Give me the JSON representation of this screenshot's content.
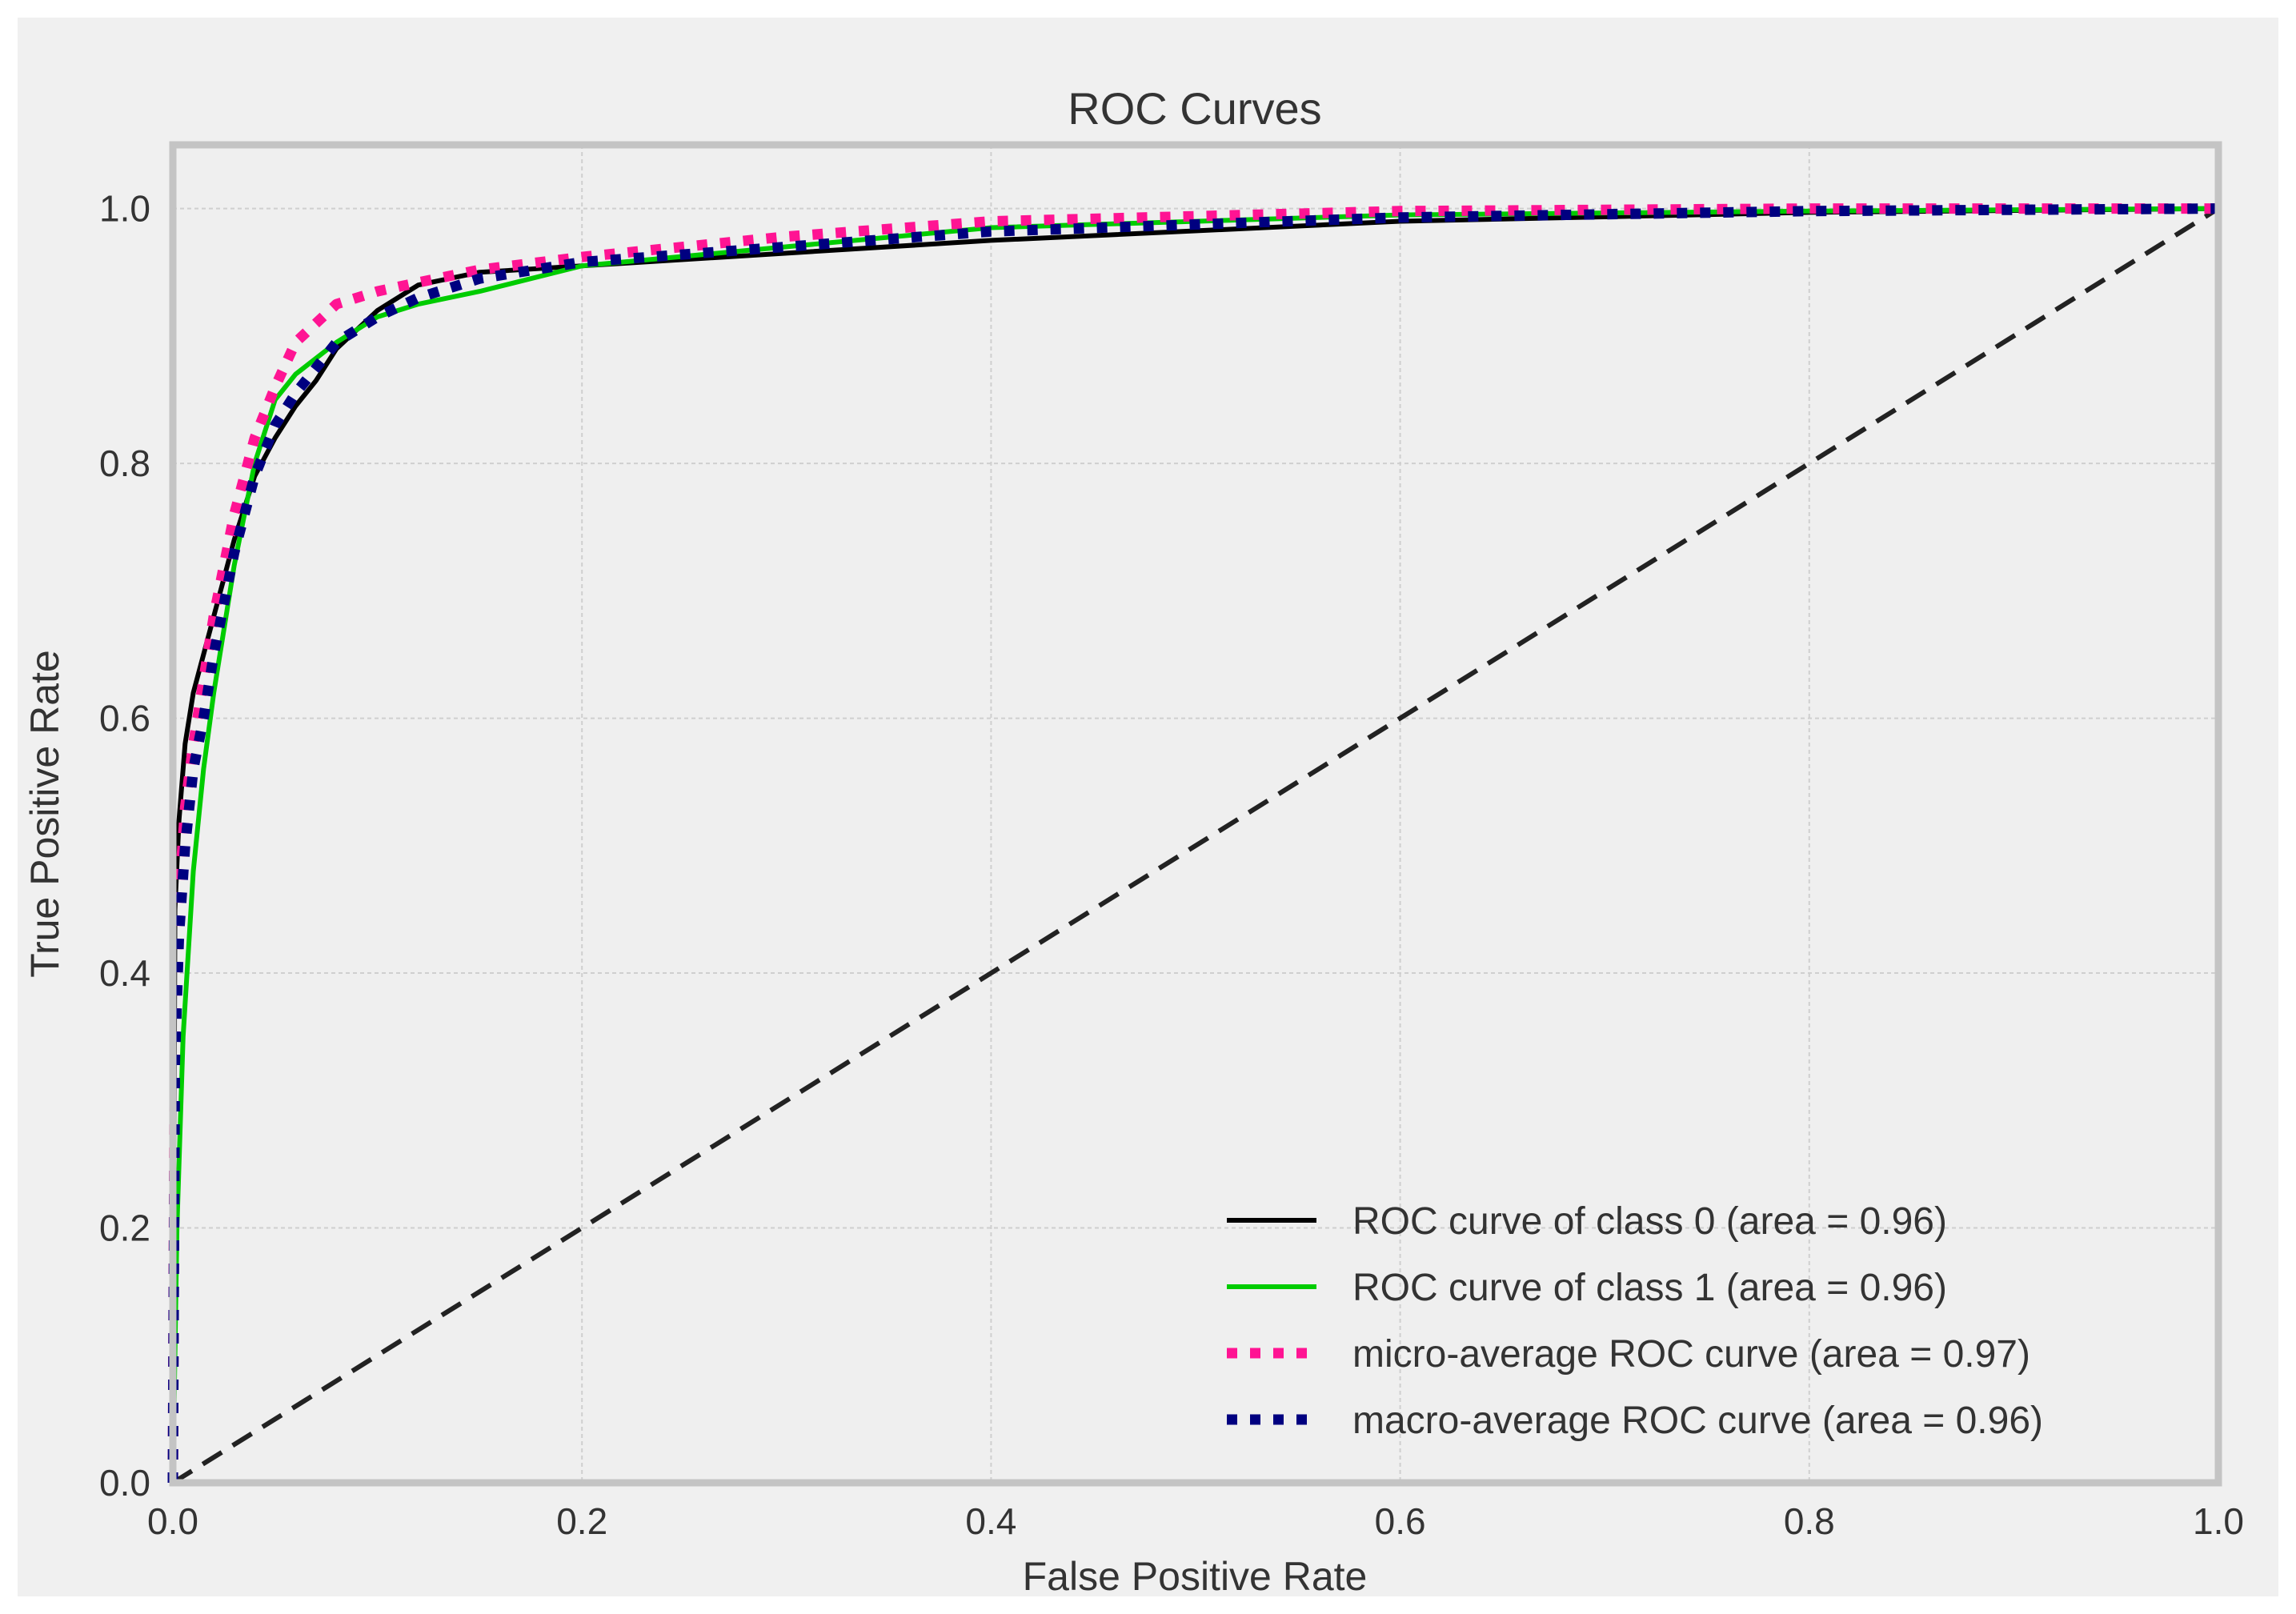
{
  "chart_data": {
    "type": "line",
    "title": "ROC Curves",
    "xlabel": "False Positive Rate",
    "ylabel": "True Positive Rate",
    "xlim": [
      0.0,
      1.0
    ],
    "ylim": [
      0.0,
      1.05
    ],
    "xticks": [
      0.0,
      0.2,
      0.4,
      0.6,
      0.8,
      1.0
    ],
    "yticks": [
      0.0,
      0.2,
      0.4,
      0.6,
      0.8,
      1.0
    ],
    "xtick_labels": [
      "0.0",
      "0.2",
      "0.4",
      "0.6",
      "0.8",
      "1.0"
    ],
    "ytick_labels": [
      "0.0",
      "0.2",
      "0.4",
      "0.6",
      "0.8",
      "1.0"
    ],
    "grid": true,
    "legend_position": "lower-right",
    "series": [
      {
        "name": "ROC curve of class 0 (area = 0.96)",
        "color": "#000000",
        "style": "solid",
        "x": [
          0.0,
          0.001,
          0.003,
          0.006,
          0.01,
          0.015,
          0.02,
          0.03,
          0.04,
          0.05,
          0.06,
          0.07,
          0.08,
          0.1,
          0.12,
          0.15,
          0.2,
          0.3,
          0.4,
          0.6,
          0.8,
          1.0
        ],
        "y": [
          0.0,
          0.45,
          0.52,
          0.58,
          0.62,
          0.65,
          0.68,
          0.74,
          0.79,
          0.82,
          0.845,
          0.865,
          0.89,
          0.92,
          0.94,
          0.95,
          0.955,
          0.965,
          0.975,
          0.99,
          0.997,
          1.0
        ]
      },
      {
        "name": "ROC curve of class 1 (area = 0.96)",
        "color": "#00cc00",
        "style": "solid",
        "x": [
          0.0,
          0.002,
          0.005,
          0.01,
          0.015,
          0.02,
          0.03,
          0.04,
          0.05,
          0.06,
          0.08,
          0.1,
          0.12,
          0.15,
          0.2,
          0.3,
          0.4,
          0.6,
          0.8,
          1.0
        ],
        "y": [
          0.0,
          0.2,
          0.35,
          0.48,
          0.56,
          0.62,
          0.72,
          0.8,
          0.85,
          0.87,
          0.895,
          0.915,
          0.925,
          0.935,
          0.955,
          0.97,
          0.985,
          0.995,
          0.998,
          1.0
        ]
      },
      {
        "name": "micro-average ROC curve (area = 0.97)",
        "color": "#ff1493",
        "style": "dotted",
        "x": [
          0.0,
          0.001,
          0.003,
          0.006,
          0.01,
          0.015,
          0.02,
          0.03,
          0.04,
          0.05,
          0.06,
          0.08,
          0.1,
          0.12,
          0.15,
          0.2,
          0.3,
          0.4,
          0.6,
          0.8,
          1.0
        ],
        "y": [
          0.0,
          0.38,
          0.46,
          0.53,
          0.58,
          0.63,
          0.68,
          0.76,
          0.82,
          0.86,
          0.895,
          0.925,
          0.935,
          0.942,
          0.952,
          0.962,
          0.978,
          0.99,
          0.998,
          1.0,
          1.0
        ]
      },
      {
        "name": "macro-average ROC curve (area = 0.96)",
        "color": "#000080",
        "style": "dotted",
        "x": [
          0.0,
          0.001,
          0.003,
          0.006,
          0.01,
          0.015,
          0.02,
          0.03,
          0.04,
          0.05,
          0.06,
          0.07,
          0.08,
          0.1,
          0.12,
          0.15,
          0.2,
          0.3,
          0.4,
          0.6,
          0.8,
          1.0
        ],
        "y": [
          0.0,
          0.33,
          0.43,
          0.5,
          0.56,
          0.6,
          0.65,
          0.73,
          0.79,
          0.83,
          0.855,
          0.875,
          0.895,
          0.915,
          0.93,
          0.945,
          0.958,
          0.97,
          0.982,
          0.993,
          0.998,
          1.0
        ]
      }
    ],
    "reference_line": {
      "name": "chance",
      "color": "#222222",
      "style": "dashed",
      "x": [
        0.0,
        1.0
      ],
      "y": [
        0.0,
        1.0
      ]
    }
  }
}
